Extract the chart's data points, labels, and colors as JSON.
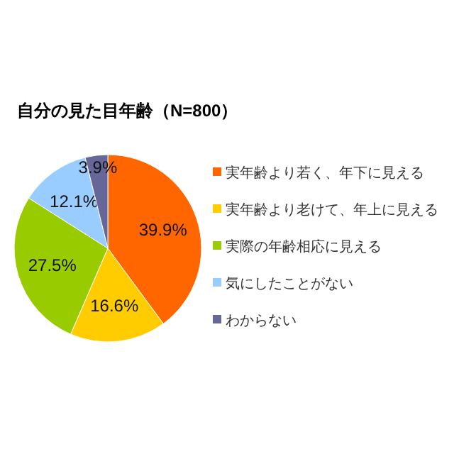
{
  "chart_data": {
    "type": "pie",
    "title": "自分の見た目年齢（N=800）",
    "categories": [
      "実年齢より若く、年下に見える",
      "実年齢より老けて、年上に見える",
      "実際の年齢相応に見える",
      "気にしたことがない",
      "わからない"
    ],
    "values": [
      39.9,
      16.6,
      27.5,
      12.1,
      3.9
    ],
    "colors": [
      "#ff6600",
      "#ffcc00",
      "#99cc00",
      "#99ccff",
      "#666699"
    ],
    "value_labels": [
      "39.9%",
      "16.6%",
      "27.5%",
      "12.1%",
      "3.9%"
    ],
    "legend": "right"
  }
}
